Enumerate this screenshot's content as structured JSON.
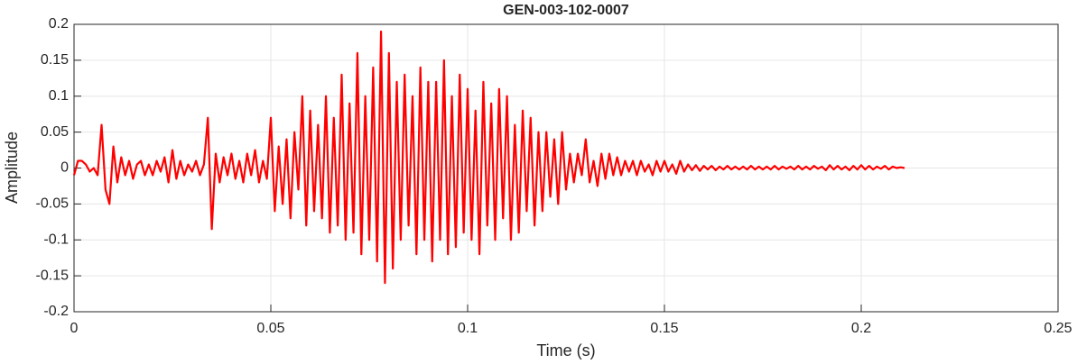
{
  "chart_data": {
    "type": "line",
    "title": "GEN-003-102-0007",
    "xlabel": "Time (s)",
    "ylabel": "Amplitude",
    "xlim": [
      0,
      0.25
    ],
    "xticks": [
      0,
      0.05,
      0.1,
      0.15,
      0.2,
      0.25
    ],
    "ylim": [
      -0.2,
      0.2
    ],
    "yticks": [
      -0.2,
      -0.15,
      -0.1,
      -0.05,
      0,
      0.05,
      0.1,
      0.15,
      0.2
    ],
    "grid": true,
    "x": [
      0,
      0.001,
      0.002,
      0.003,
      0.004,
      0.005,
      0.006,
      0.007,
      0.008,
      0.009,
      0.01,
      0.011,
      0.012,
      0.013,
      0.014,
      0.015,
      0.016,
      0.017,
      0.018,
      0.019,
      0.02,
      0.021,
      0.022,
      0.023,
      0.024,
      0.025,
      0.026,
      0.027,
      0.028,
      0.029,
      0.03,
      0.031,
      0.032,
      0.033,
      0.034,
      0.035,
      0.036,
      0.037,
      0.038,
      0.039,
      0.04,
      0.041,
      0.042,
      0.043,
      0.044,
      0.045,
      0.046,
      0.047,
      0.048,
      0.049,
      0.05,
      0.051,
      0.052,
      0.053,
      0.054,
      0.055,
      0.056,
      0.057,
      0.058,
      0.059,
      0.06,
      0.061,
      0.062,
      0.063,
      0.064,
      0.065,
      0.066,
      0.067,
      0.068,
      0.069,
      0.07,
      0.071,
      0.072,
      0.073,
      0.074,
      0.075,
      0.076,
      0.077,
      0.078,
      0.079,
      0.08,
      0.081,
      0.082,
      0.083,
      0.084,
      0.085,
      0.086,
      0.087,
      0.088,
      0.089,
      0.09,
      0.091,
      0.092,
      0.093,
      0.094,
      0.095,
      0.096,
      0.097,
      0.098,
      0.099,
      0.1,
      0.101,
      0.102,
      0.103,
      0.104,
      0.105,
      0.106,
      0.107,
      0.108,
      0.109,
      0.11,
      0.111,
      0.112,
      0.113,
      0.114,
      0.115,
      0.116,
      0.117,
      0.118,
      0.119,
      0.12,
      0.121,
      0.122,
      0.123,
      0.124,
      0.125,
      0.126,
      0.127,
      0.128,
      0.129,
      0.13,
      0.131,
      0.132,
      0.133,
      0.134,
      0.135,
      0.136,
      0.137,
      0.138,
      0.139,
      0.14,
      0.141,
      0.142,
      0.143,
      0.144,
      0.145,
      0.146,
      0.147,
      0.148,
      0.149,
      0.15,
      0.151,
      0.152,
      0.153,
      0.154,
      0.155,
      0.156,
      0.157,
      0.158,
      0.159,
      0.16,
      0.161,
      0.162,
      0.163,
      0.164,
      0.165,
      0.166,
      0.167,
      0.168,
      0.169,
      0.17,
      0.171,
      0.172,
      0.173,
      0.174,
      0.175,
      0.176,
      0.177,
      0.178,
      0.179,
      0.18,
      0.181,
      0.182,
      0.183,
      0.184,
      0.185,
      0.186,
      0.187,
      0.188,
      0.189,
      0.19,
      0.191,
      0.192,
      0.193,
      0.194,
      0.195,
      0.196,
      0.197,
      0.198,
      0.199,
      0.2,
      0.201,
      0.202,
      0.203,
      0.204,
      0.205,
      0.206,
      0.207,
      0.208,
      0.209,
      0.21,
      0.211
    ],
    "series": [
      {
        "color": "#ff0000",
        "values": [
          -0.01,
          0.01,
          0.01,
          0.005,
          -0.005,
          0.0,
          -0.01,
          0.06,
          -0.03,
          -0.05,
          0.03,
          -0.02,
          0.015,
          -0.01,
          0.01,
          -0.015,
          0.005,
          0.01,
          -0.01,
          0.005,
          -0.01,
          0.01,
          -0.005,
          0.015,
          -0.02,
          0.025,
          -0.015,
          0.01,
          -0.01,
          0.005,
          -0.005,
          0.01,
          -0.01,
          0.005,
          0.07,
          -0.085,
          0.02,
          -0.02,
          0.015,
          -0.01,
          0.02,
          -0.015,
          0.01,
          -0.02,
          0.02,
          -0.01,
          0.025,
          -0.02,
          0.01,
          -0.015,
          0.07,
          -0.06,
          0.03,
          -0.05,
          0.04,
          -0.07,
          0.05,
          -0.03,
          0.1,
          -0.08,
          0.08,
          -0.06,
          0.06,
          -0.07,
          0.1,
          -0.09,
          0.07,
          -0.08,
          0.13,
          -0.1,
          0.09,
          -0.09,
          0.16,
          -0.12,
          0.1,
          -0.1,
          0.14,
          -0.13,
          0.19,
          -0.16,
          0.16,
          -0.14,
          0.12,
          -0.1,
          0.13,
          -0.08,
          0.1,
          -0.12,
          0.14,
          -0.1,
          0.12,
          -0.13,
          0.12,
          -0.1,
          0.15,
          -0.12,
          0.1,
          -0.11,
          0.13,
          -0.09,
          0.11,
          -0.1,
          0.08,
          -0.12,
          0.12,
          -0.08,
          0.09,
          -0.1,
          0.11,
          -0.07,
          0.1,
          -0.1,
          0.06,
          -0.09,
          0.08,
          -0.06,
          0.07,
          -0.08,
          0.05,
          -0.06,
          0.05,
          -0.04,
          0.04,
          -0.05,
          0.05,
          -0.03,
          0.02,
          -0.02,
          0.02,
          -0.01,
          0.04,
          -0.02,
          0.01,
          -0.025,
          0.02,
          -0.015,
          0.02,
          -0.01,
          0.015,
          -0.01,
          0.01,
          -0.005,
          0.01,
          -0.01,
          0.01,
          -0.005,
          0.005,
          -0.01,
          0.01,
          -0.005,
          0.01,
          -0.005,
          0.005,
          -0.008,
          0.01,
          -0.005,
          0.005,
          -0.003,
          0.004,
          -0.004,
          0.003,
          -0.002,
          0.003,
          -0.003,
          0.002,
          -0.002,
          0.003,
          -0.002,
          0.002,
          -0.002,
          0.002,
          -0.002,
          0.003,
          -0.002,
          0.002,
          -0.002,
          0.002,
          -0.002,
          0.003,
          -0.002,
          0.002,
          -0.001,
          0.002,
          -0.002,
          0.003,
          -0.002,
          0.002,
          -0.002,
          0.003,
          -0.001,
          0.002,
          -0.003,
          0.004,
          -0.002,
          0.003,
          -0.002,
          0.002,
          -0.003,
          0.003,
          -0.002,
          0.004,
          -0.002,
          0.003,
          -0.002,
          0.002,
          -0.001,
          0.003,
          -0.002,
          0.002,
          0.0,
          0.001,
          0.0
        ]
      }
    ]
  }
}
